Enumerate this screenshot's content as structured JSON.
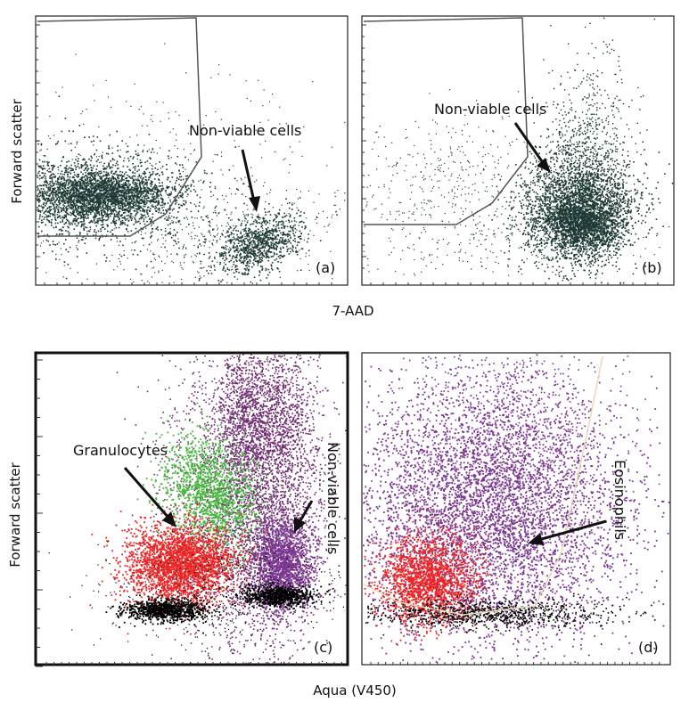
{
  "figure": {
    "top_xlabel": "7-AAD",
    "bottom_xlabel": "Aqua (V450)",
    "ylabel_top": "Forward scatter",
    "ylabel_bottom": "Forward scatter"
  },
  "chart_data": [
    {
      "type": "scatter",
      "panel": "(a)",
      "xlabel": "7-AAD",
      "ylabel": "Forward scatter",
      "grid": false,
      "annotations": [
        {
          "text": "Non-viable cells",
          "arrow": true
        }
      ],
      "gate": {
        "shape": "polygon",
        "line_color": "#555555"
      },
      "populations": [
        {
          "color": "#1f3a36",
          "density": "high",
          "location": "left-middle"
        },
        {
          "color": "#1f3a36",
          "density": "medium",
          "location": "right-lower"
        }
      ]
    },
    {
      "type": "scatter",
      "panel": "(b)",
      "xlabel": "7-AAD",
      "ylabel": "Forward scatter",
      "grid": false,
      "annotations": [
        {
          "text": "Non-viable cells",
          "arrow": true
        }
      ],
      "gate": {
        "shape": "polygon",
        "line_color": "#555555"
      },
      "populations": [
        {
          "color": "#1f3a36",
          "density": "low",
          "location": "left-middle"
        },
        {
          "color": "#1f3a36",
          "density": "high",
          "location": "right-middle"
        }
      ]
    },
    {
      "type": "scatter",
      "panel": "(c)",
      "xlabel": "Aqua (V450)",
      "ylabel": "Forward scatter",
      "grid": false,
      "annotations": [
        {
          "text": "Granulocytes",
          "arrow": true
        },
        {
          "text": "Non-viable cells",
          "arrow": true,
          "rotated": true
        }
      ],
      "populations": [
        {
          "color": "#ee2222",
          "location": "left-lower"
        },
        {
          "color": "#44b83a",
          "location": "left-middle"
        },
        {
          "color": "#6e2a6e",
          "location": "center-spread"
        },
        {
          "color": "#7a3590",
          "location": "right-lower"
        },
        {
          "color": "#000000",
          "location": "bottom"
        }
      ]
    },
    {
      "type": "scatter",
      "panel": "(d)",
      "xlabel": "Aqua (V450)",
      "ylabel": "Forward scatter",
      "grid": false,
      "annotations": [
        {
          "text": "Eosinophils",
          "arrow": true,
          "rotated": true
        }
      ],
      "gate": {
        "shape": "polygon",
        "line_color": "#e8d9b8"
      },
      "populations": [
        {
          "color": "#7a3590",
          "location": "center"
        },
        {
          "color": "#ee2222",
          "location": "left-lower"
        },
        {
          "color": "#000000",
          "location": "bottom"
        }
      ]
    }
  ]
}
